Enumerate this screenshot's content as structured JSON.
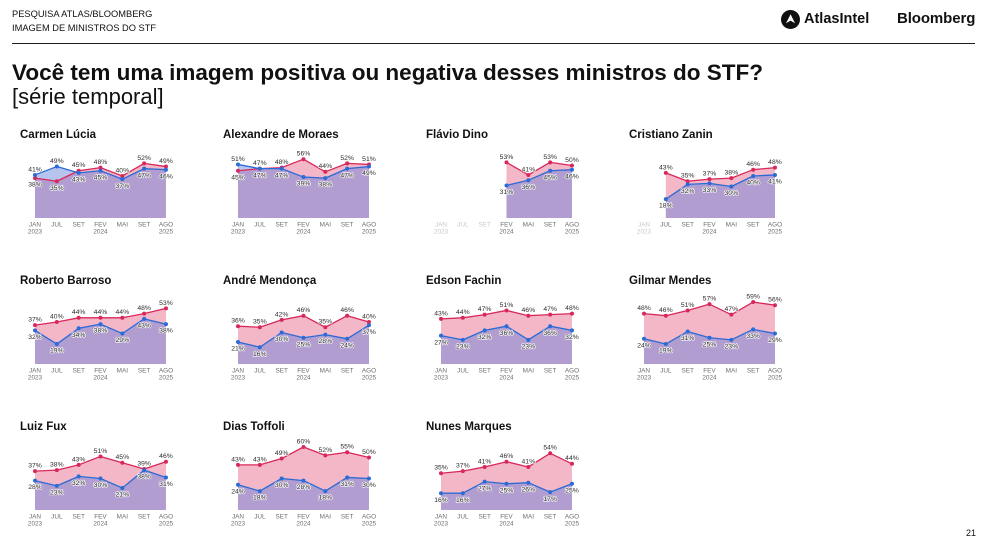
{
  "header": {
    "line1": "PESQUISA ATLAS/BLOOMBERG",
    "line2": "IMAGEM DE MINISTROS DO STF"
  },
  "logos": {
    "atlas": "AtlasIntel",
    "bloomberg": "Bloomberg"
  },
  "title": "Você tem uma imagem positiva ou negativa desses ministros do STF?",
  "subtitle": "[série temporal]",
  "page_number": "21",
  "colors": {
    "text": "#111111",
    "axis_text": "#6e6e6e",
    "axis_text_muted": "#c9c9c9",
    "rule": "#1e1e1e"
  },
  "series_styles": [
    {
      "line": "#d8285a",
      "fill": "#f4b7c7"
    },
    {
      "line": "#2b6bd6",
      "fill": "#5f7fd9"
    }
  ],
  "value_suffix": "%",
  "chart_data": [
    {
      "type": "area",
      "title": "Carmen Lúcia",
      "categories": [
        "JAN",
        "JUL",
        "SET",
        "FEV",
        "MAI",
        "SET",
        "AGO"
      ],
      "category_years": [
        "2023",
        "",
        "",
        "2024",
        "",
        "",
        "2025"
      ],
      "ylim": [
        0,
        62
      ],
      "series": [
        {
          "values": [
            38,
            35,
            45,
            48,
            40,
            52,
            49
          ]
        },
        {
          "values": [
            41,
            49,
            43,
            45,
            37,
            47,
            46
          ]
        }
      ]
    },
    {
      "type": "area",
      "title": "Alexandre de Moraes",
      "categories": [
        "JAN",
        "JUL",
        "SET",
        "FEV",
        "MAI",
        "SET",
        "AGO"
      ],
      "category_years": [
        "2023",
        "",
        "",
        "2024",
        "",
        "",
        "2025"
      ],
      "ylim": [
        0,
        62
      ],
      "series": [
        {
          "values": [
            45,
            47,
            48,
            56,
            44,
            52,
            51
          ]
        },
        {
          "values": [
            51,
            47,
            47,
            39,
            38,
            47,
            49
          ]
        }
      ]
    },
    {
      "type": "area",
      "title": "Flávio Dino",
      "categories": [
        "JAN",
        "JUL",
        "SET",
        "FEV",
        "MAI",
        "SET",
        "AGO"
      ],
      "category_years": [
        "2023",
        "",
        "",
        "2024",
        "",
        "",
        "2025"
      ],
      "ylim": [
        0,
        62
      ],
      "series": [
        {
          "values": [
            null,
            null,
            null,
            53,
            41,
            53,
            50
          ]
        },
        {
          "values": [
            null,
            null,
            null,
            31,
            36,
            45,
            46
          ]
        }
      ]
    },
    {
      "type": "area",
      "title": "Cristiano Zanin",
      "categories": [
        "JAN",
        "JUL",
        "SET",
        "FEV",
        "MAI",
        "SET",
        "AGO"
      ],
      "category_years": [
        "2023",
        "",
        "",
        "2024",
        "",
        "",
        "2025"
      ],
      "ylim": [
        0,
        62
      ],
      "series": [
        {
          "values": [
            null,
            43,
            35,
            37,
            38,
            46,
            48
          ]
        },
        {
          "values": [
            null,
            18,
            32,
            33,
            30,
            40,
            41
          ]
        }
      ]
    },
    {
      "type": "area",
      "title": "Roberto Barroso",
      "categories": [
        "JAN",
        "JUL",
        "SET",
        "FEV",
        "MAI",
        "SET",
        "AGO"
      ],
      "category_years": [
        "2023",
        "",
        "",
        "2024",
        "",
        "",
        "2025"
      ],
      "ylim": [
        0,
        62
      ],
      "series": [
        {
          "values": [
            37,
            40,
            44,
            44,
            44,
            48,
            53
          ]
        },
        {
          "values": [
            32,
            19,
            34,
            38,
            29,
            43,
            38
          ]
        }
      ]
    },
    {
      "type": "area",
      "title": "André Mendonça",
      "categories": [
        "JAN",
        "JUL",
        "SET",
        "FEV",
        "MAI",
        "SET",
        "AGO"
      ],
      "category_years": [
        "2023",
        "",
        "",
        "2024",
        "",
        "",
        "2025"
      ],
      "ylim": [
        0,
        62
      ],
      "series": [
        {
          "values": [
            36,
            35,
            42,
            46,
            35,
            46,
            40
          ]
        },
        {
          "values": [
            21,
            16,
            30,
            25,
            28,
            24,
            37
          ]
        }
      ]
    },
    {
      "type": "area",
      "title": "Edson Fachin",
      "categories": [
        "JAN",
        "JUL",
        "SET",
        "FEV",
        "MAI",
        "SET",
        "AGO"
      ],
      "category_years": [
        "2023",
        "",
        "",
        "2024",
        "",
        "",
        "2025"
      ],
      "ylim": [
        0,
        62
      ],
      "series": [
        {
          "values": [
            43,
            44,
            47,
            51,
            46,
            47,
            48
          ]
        },
        {
          "values": [
            27,
            23,
            32,
            36,
            23,
            36,
            32
          ]
        }
      ]
    },
    {
      "type": "area",
      "title": "Gilmar Mendes",
      "categories": [
        "JAN",
        "JUL",
        "SET",
        "FEV",
        "MAI",
        "SET",
        "AGO"
      ],
      "category_years": [
        "2023",
        "",
        "",
        "2024",
        "",
        "",
        "2025"
      ],
      "ylim": [
        0,
        62
      ],
      "series": [
        {
          "values": [
            48,
            46,
            51,
            57,
            47,
            59,
            56
          ]
        },
        {
          "values": [
            24,
            19,
            31,
            25,
            23,
            33,
            29
          ]
        }
      ]
    },
    {
      "type": "area",
      "title": "Luiz Fux",
      "categories": [
        "JAN",
        "JUL",
        "SET",
        "FEV",
        "MAI",
        "SET",
        "AGO"
      ],
      "category_years": [
        "2023",
        "",
        "",
        "2024",
        "",
        "",
        "2025"
      ],
      "ylim": [
        0,
        62
      ],
      "series": [
        {
          "values": [
            37,
            38,
            43,
            51,
            45,
            39,
            46
          ]
        },
        {
          "values": [
            28,
            23,
            32,
            30,
            21,
            38,
            31
          ]
        }
      ]
    },
    {
      "type": "area",
      "title": "Dias Toffoli",
      "categories": [
        "JAN",
        "JUL",
        "SET",
        "FEV",
        "MAI",
        "SET",
        "AGO"
      ],
      "category_years": [
        "2023",
        "",
        "",
        "2024",
        "",
        "",
        "2025"
      ],
      "ylim": [
        0,
        62
      ],
      "series": [
        {
          "values": [
            43,
            43,
            49,
            60,
            52,
            55,
            50
          ]
        },
        {
          "values": [
            24,
            18,
            30,
            28,
            18,
            31,
            30
          ]
        }
      ]
    },
    {
      "type": "area",
      "title": "Nunes Marques",
      "categories": [
        "JAN",
        "JUL",
        "SET",
        "FEV",
        "MAI",
        "SET",
        "AGO"
      ],
      "category_years": [
        "2023",
        "",
        "",
        "2024",
        "",
        "",
        "2025"
      ],
      "ylim": [
        0,
        62
      ],
      "series": [
        {
          "values": [
            35,
            37,
            41,
            46,
            41,
            54,
            44
          ]
        },
        {
          "values": [
            16,
            16,
            27,
            25,
            26,
            17,
            25
          ]
        }
      ]
    }
  ]
}
